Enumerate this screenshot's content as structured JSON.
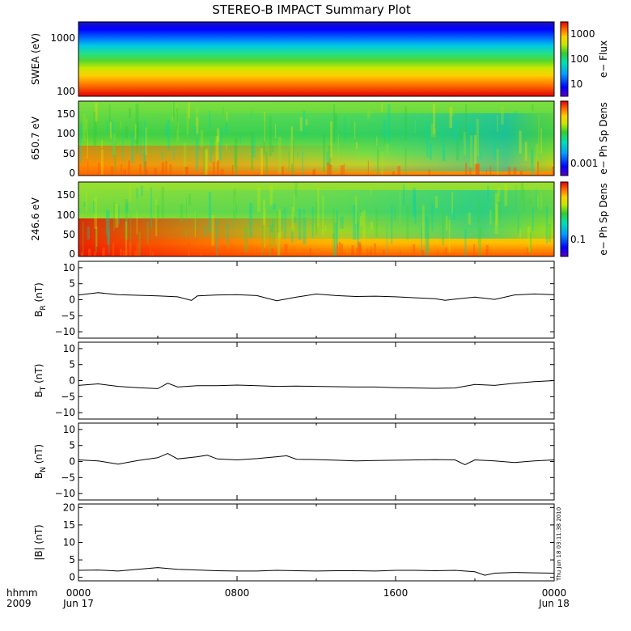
{
  "title": "STEREO-B IMPACT Summary Plot",
  "footer": {
    "corner_top": "hhmm",
    "corner_bottom": "2009",
    "x_ticks": [
      "0000",
      "0800",
      "1600",
      "0000"
    ],
    "x_dates": [
      "Jun 17",
      "",
      "",
      "Jun 18"
    ],
    "timestamp": "Thu Jun 18 03:11:38 2010"
  },
  "colors": {
    "colormap": [
      "#0a0a9e",
      "#0000ff",
      "#00a0ff",
      "#00e6a0",
      "#33cc33",
      "#c8e800",
      "#ffd000",
      "#ff6a00",
      "#e40000"
    ],
    "line": "#000000"
  },
  "chart_data": [
    {
      "type": "heatmap",
      "ylabel": "SWEA (eV)",
      "yscale": "log",
      "y_ticks": [
        "1000",
        "100"
      ],
      "colorbar": {
        "label": "e− Flux",
        "scale": "log",
        "ticks": [
          "1000",
          "100",
          "10"
        ]
      },
      "description_levels": [
        0.05,
        0.12,
        0.22,
        0.34,
        0.46,
        0.58,
        0.68,
        0.8,
        0.92
      ]
    },
    {
      "type": "heatmap",
      "ylabel": "650.7 eV",
      "ylim": [
        0,
        180
      ],
      "y_ticks": [
        "150",
        "100",
        "50",
        "0"
      ],
      "colorbar": {
        "label": "e− Ph Sp Dens",
        "scale": "log",
        "ticks": [
          "0.001"
        ]
      }
    },
    {
      "type": "heatmap",
      "ylabel": "246.6 eV",
      "ylim": [
        0,
        180
      ],
      "y_ticks": [
        "150",
        "100",
        "50",
        "0"
      ],
      "colorbar": {
        "label": "e− Ph Sp Dens",
        "scale": "log",
        "ticks": [
          "0.1"
        ]
      }
    },
    {
      "type": "line",
      "ylabel_main": "B",
      "ylabel_sub": "R",
      "ylabel_unit": "(nT)",
      "ylim": [
        -12,
        12
      ],
      "y_ticks": [
        "10",
        "5",
        "0",
        "−5",
        "−10"
      ],
      "x": [
        0,
        1,
        2,
        3,
        4,
        5,
        5.7,
        6,
        7,
        8,
        9,
        10,
        11,
        12,
        13,
        14,
        15,
        16,
        17,
        18,
        18.5,
        19,
        20,
        21,
        22,
        23,
        24
      ],
      "values": [
        1.5,
        2.2,
        1.6,
        1.4,
        1.2,
        0.9,
        -0.2,
        1.2,
        1.5,
        1.6,
        1.3,
        -0.3,
        0.8,
        1.8,
        1.3,
        1.0,
        1.1,
        0.9,
        0.6,
        0.3,
        -0.2,
        0.2,
        0.8,
        0.1,
        1.5,
        1.8,
        1.6
      ]
    },
    {
      "type": "line",
      "ylabel_main": "B",
      "ylabel_sub": "T",
      "ylabel_unit": "(nT)",
      "ylim": [
        -12,
        12
      ],
      "y_ticks": [
        "10",
        "5",
        "0",
        "−5",
        "−10"
      ],
      "x": [
        0,
        1,
        2,
        3,
        4,
        4.5,
        5,
        6,
        7,
        8,
        9,
        10,
        11,
        12,
        13,
        14,
        15,
        16,
        17,
        18,
        19,
        20,
        21,
        22,
        23,
        24
      ],
      "values": [
        -1.5,
        -1.0,
        -1.8,
        -2.2,
        -2.5,
        -0.8,
        -2.0,
        -1.6,
        -1.6,
        -1.4,
        -1.6,
        -1.8,
        -1.7,
        -1.8,
        -1.9,
        -2.0,
        -2.0,
        -2.2,
        -2.3,
        -2.4,
        -2.3,
        -1.2,
        -1.5,
        -0.8,
        -0.3,
        0.0
      ]
    },
    {
      "type": "line",
      "ylabel_main": "B",
      "ylabel_sub": "N",
      "ylabel_unit": "(nT)",
      "ylim": [
        -12,
        12
      ],
      "y_ticks": [
        "10",
        "5",
        "0",
        "−5",
        "−10"
      ],
      "x": [
        0,
        1,
        2,
        3,
        4,
        4.5,
        5,
        6,
        6.5,
        7,
        8,
        9,
        10,
        10.5,
        11,
        12,
        13,
        14,
        15,
        16,
        17,
        18,
        19,
        19.5,
        20,
        21,
        22,
        23,
        24
      ],
      "values": [
        0.5,
        0.2,
        -0.8,
        0.3,
        1.2,
        2.5,
        0.8,
        1.5,
        2.0,
        0.8,
        0.5,
        0.9,
        1.5,
        1.8,
        0.7,
        0.6,
        0.4,
        0.2,
        0.3,
        0.4,
        0.5,
        0.6,
        0.5,
        -1.0,
        0.5,
        0.2,
        -0.3,
        0.2,
        0.5
      ]
    },
    {
      "type": "line",
      "ylabel_main": "|B|",
      "ylabel_sub": "",
      "ylabel_unit": "(nT)",
      "ylim": [
        -1,
        21
      ],
      "y_ticks": [
        "20",
        "15",
        "10",
        "5",
        "0"
      ],
      "x": [
        0,
        1,
        2,
        3,
        4,
        5,
        6,
        7,
        8,
        9,
        10,
        11,
        12,
        13,
        14,
        15,
        16,
        17,
        18,
        19,
        20,
        20.5,
        21,
        22,
        23,
        24
      ],
      "values": [
        2.0,
        2.1,
        1.8,
        2.3,
        2.8,
        2.3,
        2.1,
        1.9,
        1.8,
        1.8,
        2.0,
        1.9,
        1.8,
        1.9,
        1.9,
        1.8,
        2.0,
        2.0,
        1.9,
        2.0,
        1.6,
        0.6,
        1.2,
        1.4,
        1.3,
        1.2
      ]
    }
  ]
}
